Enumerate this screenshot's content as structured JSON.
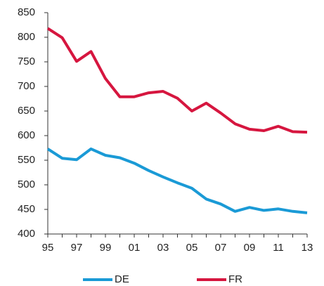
{
  "chart_data": {
    "type": "line",
    "categories": [
      "95",
      null,
      "97",
      null,
      "99",
      null,
      "01",
      null,
      "03",
      null,
      "05",
      null,
      "07",
      null,
      "09",
      null,
      "11",
      null,
      "13"
    ],
    "series": [
      {
        "name": "DE",
        "color": "#1a9ad6",
        "values": [
          573,
          554,
          551,
          573,
          560,
          555,
          544,
          529,
          516,
          504,
          493,
          471,
          461,
          446,
          454,
          448,
          451,
          446,
          443
        ]
      },
      {
        "name": "FR",
        "color": "#d6163f",
        "values": [
          818,
          799,
          751,
          771,
          716,
          679,
          679,
          687,
          690,
          676,
          650,
          666,
          646,
          624,
          613,
          610,
          619,
          608,
          607
        ]
      }
    ],
    "ylim": [
      400,
      850
    ],
    "yticks": [
      400,
      450,
      500,
      550,
      600,
      650,
      700,
      750,
      800,
      850
    ],
    "grid": false,
    "legend": "bottom"
  }
}
